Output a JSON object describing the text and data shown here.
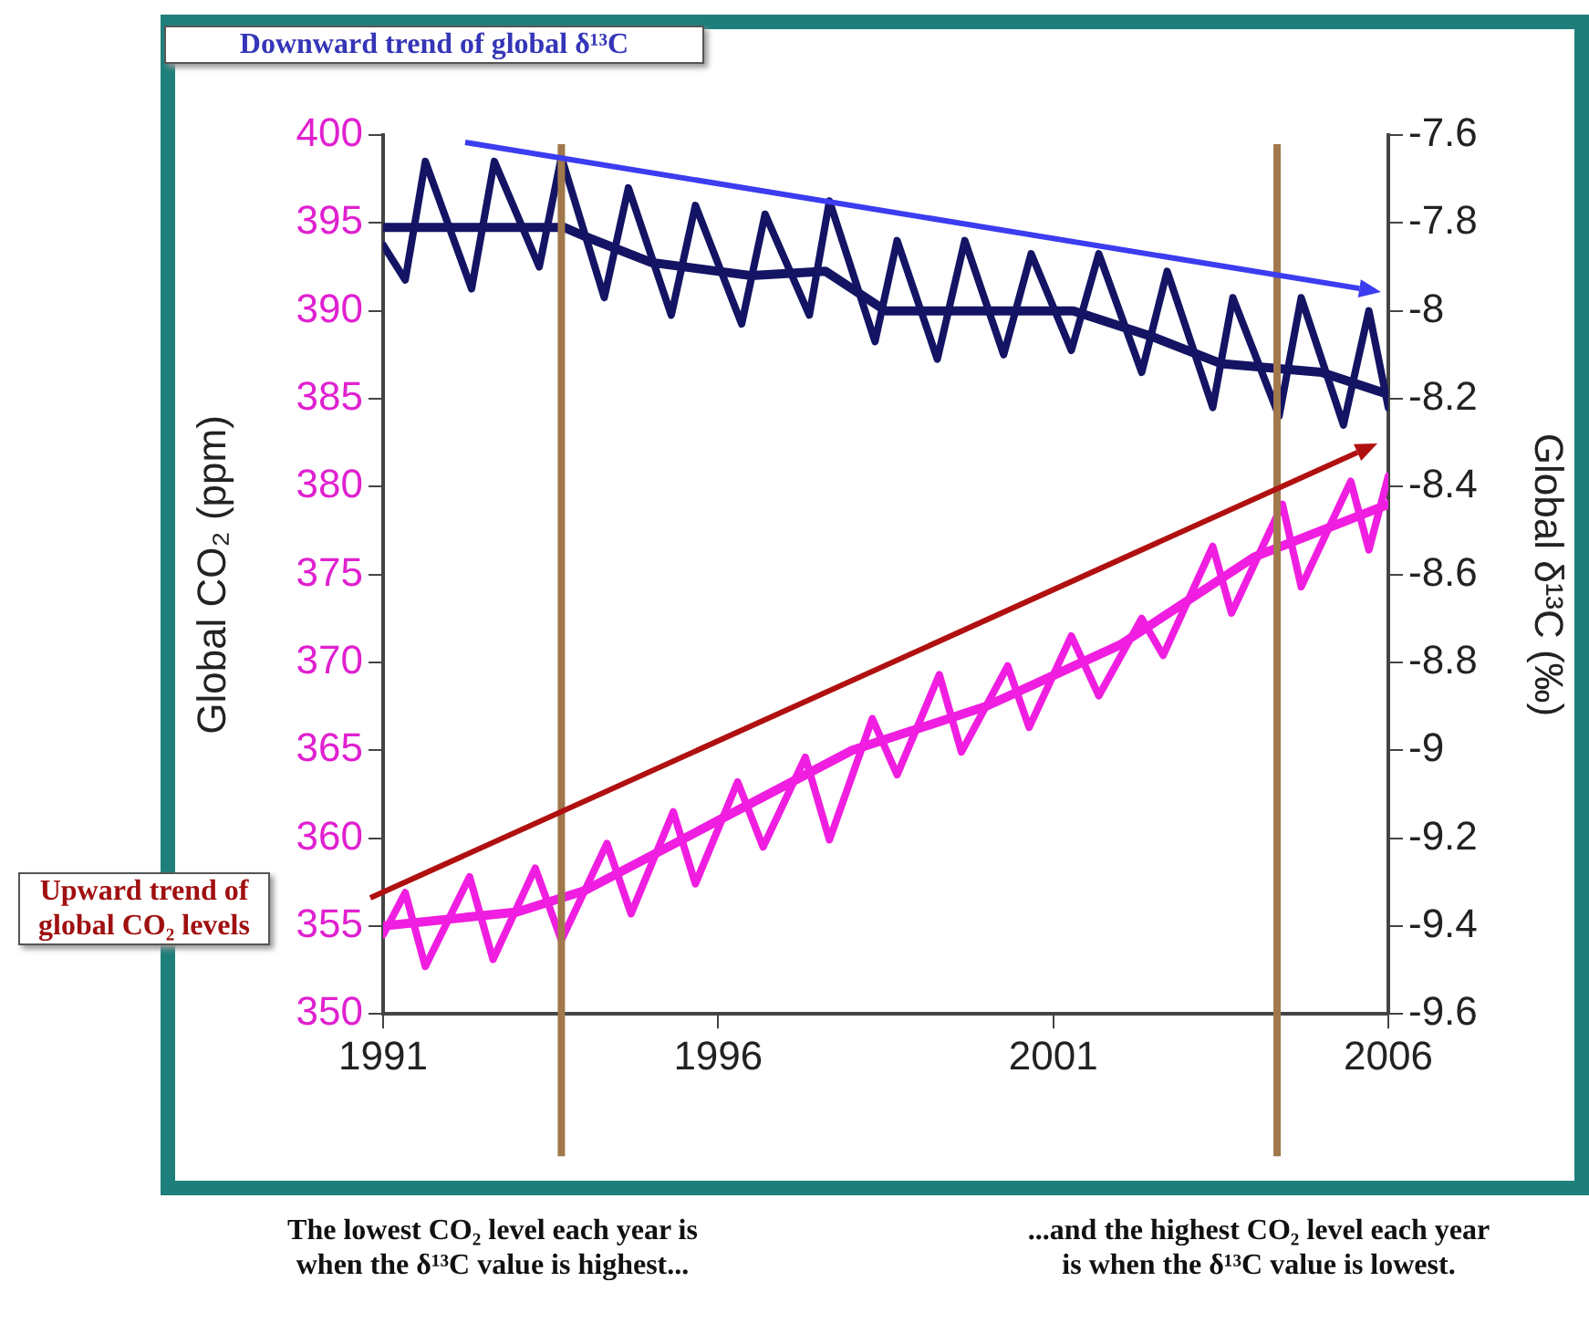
{
  "chart_data": {
    "type": "line",
    "xlabel": null,
    "ylabel": "Global CO₂ (ppm)",
    "y2label": "Global δ¹³C (‰)",
    "xlim": [
      1991,
      2006
    ],
    "xticks": [
      1991,
      1996,
      2001,
      2006
    ],
    "ylim": [
      350,
      400
    ],
    "yticks": [
      350,
      355,
      360,
      365,
      370,
      375,
      380,
      385,
      390,
      395,
      400
    ],
    "y2lim": [
      -9.6,
      -7.6
    ],
    "y2ticks": [
      -9.6,
      -9.4,
      -9.2,
      -9,
      -8.8,
      -8.6,
      -8.4,
      -8.2,
      -8,
      -7.8,
      -7.6
    ],
    "grid": false,
    "legend": false,
    "marker": "none",
    "line_style": "solid",
    "series": [
      {
        "color": "#f01ee0",
        "axis": "y",
        "x": [
          1991,
          1991.33,
          1991.63,
          1992.29,
          1992.64,
          1993.27,
          1993.66,
          1994.34,
          1994.7,
          1995.33,
          1995.66,
          1996.29,
          1996.67,
          1997.3,
          1997.66,
          1998.3,
          1998.67,
          1999.3,
          1999.63,
          2000.32,
          2000.64,
          2001.27,
          2001.68,
          2002.32,
          2002.64,
          2003.38,
          2003.66,
          2004.42,
          2004.7,
          2005.44,
          2005.71,
          2006
        ],
        "values": [
          354.5,
          356.9,
          352.7,
          357.8,
          353.1,
          358.3,
          354.2,
          359.7,
          355.7,
          361.5,
          357.4,
          363.2,
          359.5,
          364.6,
          359.9,
          366.8,
          363.6,
          369.3,
          364.9,
          369.8,
          366.3,
          371.5,
          368.1,
          372.5,
          370.4,
          376.6,
          372.8,
          379,
          374.3,
          380.3,
          376.4,
          380.6
        ]
      },
      {
        "color": "#f01ee0",
        "axis": "y",
        "x": [
          1991,
          1993,
          1994,
          1996,
          1998,
          2000,
          2002,
          2004,
          2006
        ],
        "values": [
          355,
          355.8,
          357,
          361,
          365,
          367.5,
          371,
          376,
          379
        ]
      },
      {
        "color": "#141464",
        "axis": "y2",
        "x": [
          1991,
          1991.33,
          1991.63,
          1992.32,
          1992.66,
          1993.33,
          1993.66,
          1994.3,
          1994.66,
          1995.3,
          1995.66,
          1996.35,
          1996.7,
          1997.36,
          1997.66,
          1998.34,
          1998.67,
          1999.27,
          1999.68,
          2000.26,
          2000.67,
          2001.27,
          2001.68,
          2002.32,
          2002.7,
          2003.38,
          2003.68,
          2004.37,
          2004.7,
          2005.33,
          2005.71,
          2006
        ],
        "values": [
          -7.85,
          -7.93,
          -7.66,
          -7.95,
          -7.66,
          -7.9,
          -7.65,
          -7.97,
          -7.72,
          -8.01,
          -7.76,
          -8.03,
          -7.78,
          -8.01,
          -7.75,
          -8.07,
          -7.84,
          -8.11,
          -7.84,
          -8.1,
          -7.87,
          -8.09,
          -7.87,
          -8.14,
          -7.91,
          -8.22,
          -7.97,
          -8.24,
          -7.97,
          -8.26,
          -8,
          -8.22
        ]
      },
      {
        "color": "#141464",
        "axis": "y2",
        "x": [
          1991,
          1993.7,
          1994,
          1995,
          1996.5,
          1997.6,
          1998.5,
          2001.3,
          2002.5,
          2003.5,
          2005,
          2006
        ],
        "values": [
          -7.81,
          -7.81,
          -7.83,
          -7.89,
          -7.92,
          -7.91,
          -8,
          -8,
          -8.06,
          -8.12,
          -8.14,
          -8.19
        ]
      }
    ],
    "ref_lines": [
      {
        "axis": "x",
        "value": 1993.66,
        "color": "#a0784c"
      },
      {
        "axis": "x",
        "value": 2004.34,
        "color": "#a0784c"
      }
    ],
    "annotations": [
      "Downward trend of global δ¹³C",
      "Upward trend of global CO₂ levels",
      "The lowest CO₂ level each year is when the δ¹³C value is highest...",
      "...and the highest CO₂ level each year is when the δ¹³C value is lowest."
    ]
  }
}
